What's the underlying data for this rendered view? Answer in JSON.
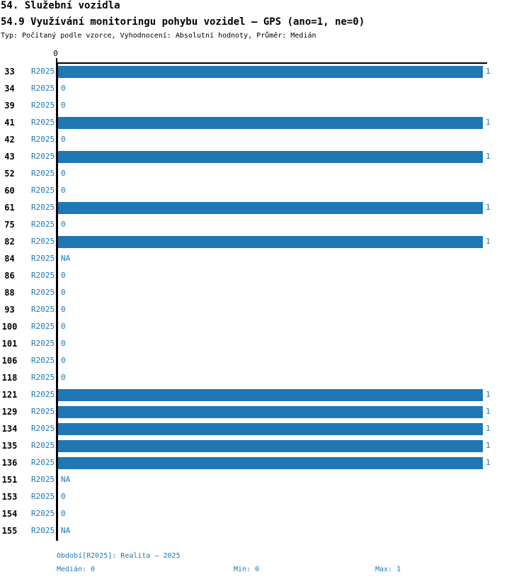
{
  "header": {
    "title": "54. Služební vozidla",
    "subtitle": "54.9 Využívání monitoringu pohybu vozidel – GPS (ano=1, ne=0)",
    "meta": "Typ: Počítaný podle vzorce, Vyhodnocení: Absolutní hodnoty, Průměr: Medián"
  },
  "colors": {
    "bar": "#1f77b4",
    "accent_text": "#1f77b4",
    "axis": "#000000"
  },
  "chart_data": {
    "type": "bar",
    "orientation": "horizontal",
    "title": "54.9 Využívání monitoringu pohybu vozidel – GPS (ano=1, ne=0)",
    "series_label": "R2025",
    "categories": [
      "33",
      "34",
      "39",
      "41",
      "42",
      "43",
      "52",
      "60",
      "61",
      "75",
      "82",
      "84",
      "86",
      "88",
      "93",
      "100",
      "101",
      "106",
      "118",
      "121",
      "129",
      "134",
      "135",
      "136",
      "151",
      "153",
      "154",
      "155"
    ],
    "values": [
      1,
      0,
      0,
      1,
      0,
      1,
      0,
      0,
      1,
      0,
      1,
      "NA",
      0,
      0,
      0,
      0,
      0,
      0,
      0,
      1,
      1,
      1,
      1,
      1,
      "NA",
      0,
      0,
      "NA"
    ],
    "xlim": [
      0,
      1
    ],
    "x_ticks": [
      0
    ],
    "tick_label": "0",
    "missing_label": "NA",
    "grid": false,
    "value_labels_shown": true
  },
  "footer": {
    "period": "Období[R2025]: Realita – 2025",
    "median": "Medián: 0",
    "min": "Min: 0",
    "max": "Max: 1"
  }
}
